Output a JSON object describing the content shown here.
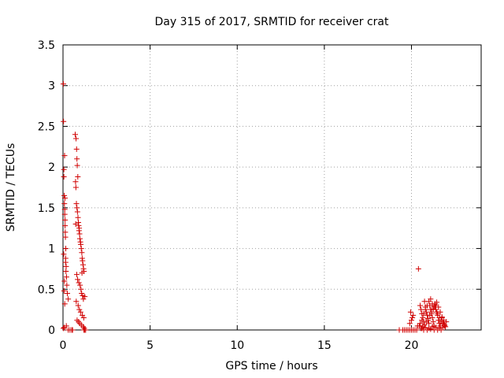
{
  "chart_data": {
    "type": "scatter",
    "title": "Day 315 of 2017, SRMTID for receiver crat",
    "xlabel": "GPS time / hours",
    "ylabel": "SRMTID / TECUs",
    "xlim": [
      0,
      24
    ],
    "ylim": [
      0,
      3.5
    ],
    "xticks": [
      "0",
      "5",
      "10",
      "15",
      "20"
    ],
    "yticks": [
      "0",
      "0.5",
      "1",
      "1.5",
      "2",
      "2.5",
      "3",
      "3.5"
    ],
    "grid": true,
    "marker": "+",
    "color": "#d00000",
    "series": [
      {
        "name": "SRMTID",
        "x": [
          0.02,
          0.03,
          0.05,
          0.05,
          0.07,
          0.08,
          0.1,
          0.1,
          0.12,
          0.12,
          0.14,
          0.15,
          0.15,
          0.17,
          0.2,
          0.22,
          0.25,
          0.3,
          0.1,
          0.06,
          0.08,
          0.04,
          0.13,
          0.16,
          0.18,
          0.09,
          0.11,
          0.02,
          0.07,
          0.19,
          0.7,
          0.75,
          0.78,
          0.8,
          0.82,
          0.85,
          0.72,
          0.74,
          0.77,
          0.8,
          0.83,
          0.86,
          0.88,
          0.9,
          0.92,
          0.95,
          0.97,
          1.0,
          1.02,
          1.05,
          1.08,
          1.1,
          1.12,
          1.15,
          1.18,
          1.2,
          0.79,
          0.84,
          0.91,
          0.98,
          1.03,
          1.07,
          1.13,
          1.17,
          0.76,
          0.87,
          0.94,
          1.01,
          1.11,
          1.19,
          0.81,
          0.89,
          0.96,
          1.06,
          1.16,
          1.22,
          1.25,
          0.73,
          0.93,
          1.09,
          0.3,
          0.4,
          0.5,
          0.55,
          1.2,
          1.25,
          1.3,
          19.3,
          19.5,
          19.6,
          19.7,
          19.8,
          19.9,
          20.0,
          20.1,
          20.2,
          20.3,
          19.9,
          20.0,
          20.1,
          19.95,
          20.05,
          20.4,
          20.5,
          20.55,
          20.6,
          20.65,
          20.7,
          20.75,
          20.8,
          20.85,
          20.9,
          20.95,
          21.0,
          21.05,
          21.1,
          21.15,
          21.2,
          21.25,
          21.3,
          21.35,
          21.4,
          21.45,
          21.5,
          21.55,
          21.6,
          21.65,
          21.7,
          21.75,
          21.8,
          21.85,
          21.9,
          21.95,
          22.0,
          20.45,
          20.5,
          20.6,
          20.7,
          20.8,
          20.9,
          21.0,
          21.1,
          21.2,
          21.3,
          21.4,
          21.5,
          21.6,
          21.7,
          21.8,
          21.9,
          20.55,
          20.65,
          20.75,
          20.85,
          20.95,
          21.05,
          21.15,
          21.25,
          21.35,
          21.45,
          21.55,
          21.65,
          21.75,
          21.85,
          20.6,
          20.8,
          21.0,
          21.2,
          21.4,
          21.6,
          21.8,
          20.7,
          20.9,
          21.1,
          21.3,
          21.5,
          21.7,
          20.35
        ],
        "y": [
          3.02,
          2.56,
          1.97,
          1.88,
          1.65,
          1.55,
          1.48,
          1.42,
          1.35,
          1.28,
          1.14,
          0.88,
          0.83,
          0.72,
          0.65,
          0.55,
          0.45,
          0.38,
          0.32,
          0.48,
          0.6,
          0.93,
          1.2,
          1.0,
          0.78,
          2.14,
          1.62,
          0.02,
          0.03,
          0.05,
          2.4,
          2.35,
          2.22,
          2.1,
          2.02,
          1.88,
          1.82,
          1.75,
          1.55,
          1.5,
          1.45,
          1.38,
          1.32,
          1.28,
          1.22,
          1.18,
          1.12,
          1.08,
          1.05,
          1.0,
          0.95,
          0.88,
          0.85,
          0.8,
          0.75,
          0.72,
          0.68,
          0.62,
          0.58,
          0.55,
          0.5,
          0.45,
          0.42,
          0.38,
          0.35,
          0.3,
          0.25,
          0.22,
          0.18,
          0.15,
          0.12,
          0.1,
          0.08,
          0.06,
          0.04,
          0.02,
          0.41,
          1.3,
          1.25,
          0.7,
          0.0,
          0.0,
          0.0,
          0.0,
          0.0,
          0.0,
          0.0,
          0.0,
          0.0,
          0.0,
          0.0,
          0.0,
          0.0,
          0.0,
          0.0,
          0.0,
          0.0,
          0.08,
          0.12,
          0.18,
          0.22,
          0.15,
          0.75,
          0.3,
          0.25,
          0.2,
          0.15,
          0.1,
          0.35,
          0.28,
          0.22,
          0.18,
          0.12,
          0.08,
          0.3,
          0.25,
          0.2,
          0.15,
          0.1,
          0.05,
          0.32,
          0.28,
          0.22,
          0.18,
          0.12,
          0.08,
          0.05,
          0.1,
          0.15,
          0.08,
          0.12,
          0.06,
          0.04,
          0.1,
          0.05,
          0.08,
          0.12,
          0.2,
          0.25,
          0.3,
          0.35,
          0.38,
          0.32,
          0.28,
          0.25,
          0.2,
          0.15,
          0.12,
          0.08,
          0.05,
          0.02,
          0.04,
          0.06,
          0.1,
          0.14,
          0.18,
          0.22,
          0.26,
          0.3,
          0.34,
          0.28,
          0.22,
          0.16,
          0.1,
          0.02,
          0.03,
          0.02,
          0.04,
          0.03,
          0.02,
          0.03,
          0.0,
          0.0,
          0.01,
          0.0,
          0.0,
          0.0,
          0.05
        ]
      }
    ]
  }
}
